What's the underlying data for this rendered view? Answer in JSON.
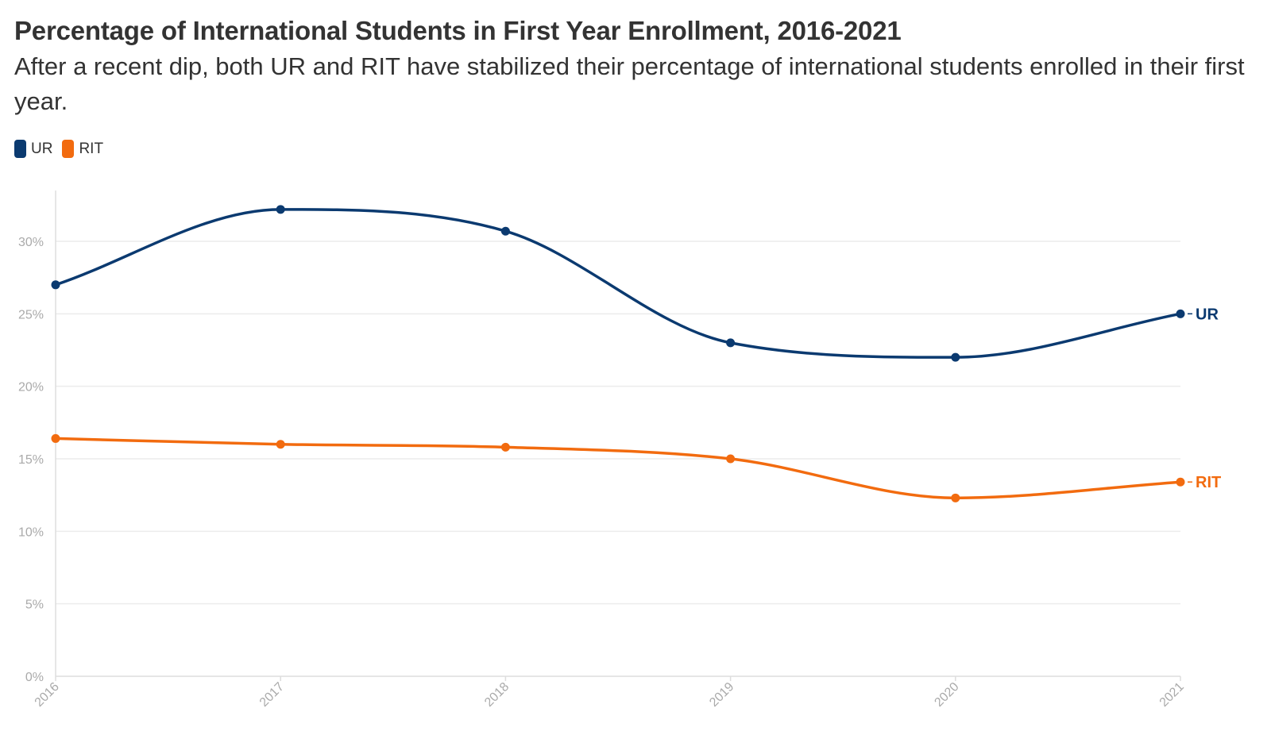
{
  "chart_data": {
    "type": "line",
    "title": "Percentage of International Students in First Year Enrollment, 2016-2021",
    "subtitle": "After a recent dip, both UR and RIT have stabilized their percentage of international students enrolled in their first year.",
    "categories": [
      "2016",
      "2017",
      "2018",
      "2019",
      "2020",
      "2021"
    ],
    "y_ticks": [
      0,
      5,
      10,
      15,
      20,
      25,
      30
    ],
    "y_tick_labels": [
      "0%",
      "5%",
      "10%",
      "15%",
      "20%",
      "25%",
      "30%"
    ],
    "ylim": [
      0,
      34
    ],
    "grid": true,
    "legend_position": "top-left",
    "xlabel": "",
    "ylabel": "",
    "series": [
      {
        "name": "UR",
        "color": "#0b3a70",
        "values": [
          27.0,
          32.2,
          30.7,
          23.0,
          22.0,
          25.0
        ]
      },
      {
        "name": "RIT",
        "color": "#f26b0f",
        "values": [
          16.4,
          16.0,
          15.8,
          15.0,
          12.3,
          13.4
        ]
      }
    ]
  }
}
